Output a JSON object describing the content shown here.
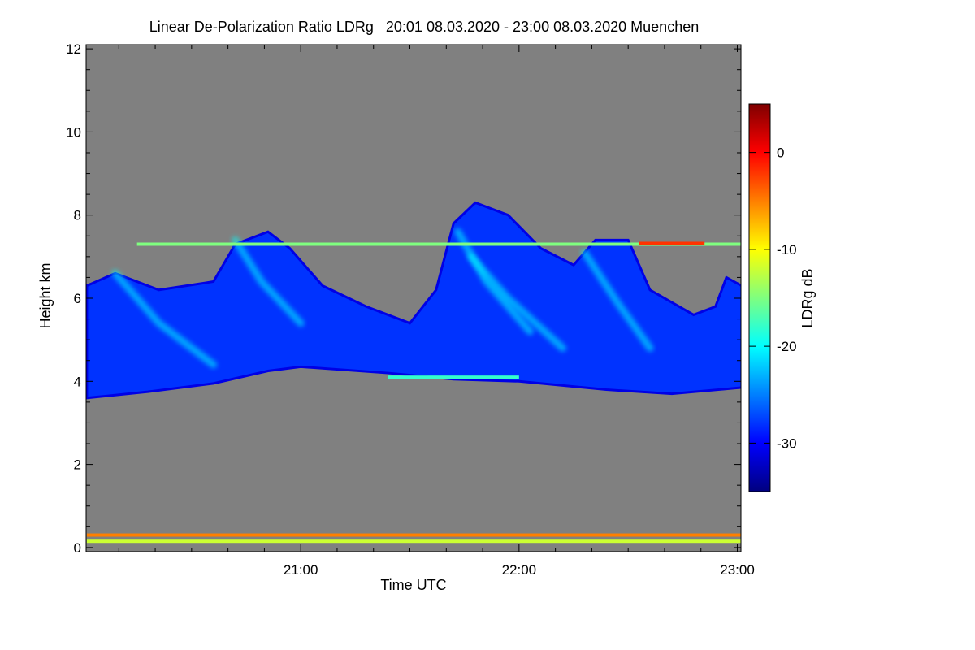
{
  "chart_data": {
    "type": "heatmap",
    "title": "Linear De-Polarization Ratio LDRg   20:01 08.03.2020 - 23:00 08.03.2020 Muenchen",
    "xlabel": "Time UTC",
    "ylabel": "Height km",
    "colorbar_label": "LDRg dB",
    "x_range_hours": [
      20.0167,
      23.0167
    ],
    "x_ticks": [
      {
        "value": 21.0,
        "label": "21:00"
      },
      {
        "value": 22.0,
        "label": "22:00"
      },
      {
        "value": 23.0,
        "label": "23:00"
      }
    ],
    "y_range": [
      -0.1,
      12.1
    ],
    "y_ticks": [
      {
        "value": 0,
        "label": "0"
      },
      {
        "value": 2,
        "label": "2"
      },
      {
        "value": 4,
        "label": "4"
      },
      {
        "value": 6,
        "label": "6"
      },
      {
        "value": 8,
        "label": "8"
      },
      {
        "value": 10,
        "label": "10"
      },
      {
        "value": 12,
        "label": "12"
      }
    ],
    "color_range": [
      -35,
      5
    ],
    "color_ticks": [
      {
        "value": 0,
        "label": "0"
      },
      {
        "value": -10,
        "label": "-10"
      },
      {
        "value": -20,
        "label": "-20"
      },
      {
        "value": -30,
        "label": "-30"
      }
    ],
    "colormap": [
      "#00007f",
      "#0000ff",
      "#007fff",
      "#00ffff",
      "#7fff7f",
      "#ffff00",
      "#ff7f00",
      "#ff0000",
      "#7f0000"
    ],
    "no_signal_color": "#808080",
    "cloud_layer": {
      "value_db": -28,
      "base_km": [
        [
          20.02,
          3.6
        ],
        [
          20.3,
          3.75
        ],
        [
          20.6,
          3.95
        ],
        [
          20.85,
          4.25
        ],
        [
          21.0,
          4.35
        ],
        [
          21.4,
          4.2
        ],
        [
          21.7,
          4.05
        ],
        [
          22.0,
          4.0
        ],
        [
          22.4,
          3.8
        ],
        [
          22.7,
          3.7
        ],
        [
          23.02,
          3.85
        ]
      ],
      "top_km": [
        [
          20.02,
          6.3
        ],
        [
          20.15,
          6.6
        ],
        [
          20.35,
          6.2
        ],
        [
          20.6,
          6.4
        ],
        [
          20.7,
          7.3
        ],
        [
          20.85,
          7.6
        ],
        [
          20.95,
          7.2
        ],
        [
          21.1,
          6.3
        ],
        [
          21.3,
          5.8
        ],
        [
          21.5,
          5.4
        ],
        [
          21.62,
          6.2
        ],
        [
          21.7,
          7.8
        ],
        [
          21.8,
          8.3
        ],
        [
          21.95,
          8.0
        ],
        [
          22.1,
          7.2
        ],
        [
          22.25,
          6.8
        ],
        [
          22.35,
          7.4
        ],
        [
          22.5,
          7.4
        ],
        [
          22.6,
          6.2
        ],
        [
          22.8,
          5.6
        ],
        [
          22.9,
          5.8
        ],
        [
          22.95,
          6.5
        ],
        [
          23.02,
          6.3
        ]
      ],
      "fall_streaks_db": -20
    },
    "bands": [
      {
        "height_km": 7.3,
        "from": 20.25,
        "to": 23.02,
        "value_db": -15
      },
      {
        "height_km": 7.32,
        "from": 22.55,
        "to": 22.85,
        "value_db": -2
      },
      {
        "height_km": 4.1,
        "from": 21.4,
        "to": 22.0,
        "value_db": -18
      },
      {
        "height_km": 0.3,
        "from": 20.02,
        "to": 23.02,
        "value_db": -5
      },
      {
        "height_km": 0.15,
        "from": 20.02,
        "to": 23.02,
        "value_db": -12
      }
    ]
  }
}
